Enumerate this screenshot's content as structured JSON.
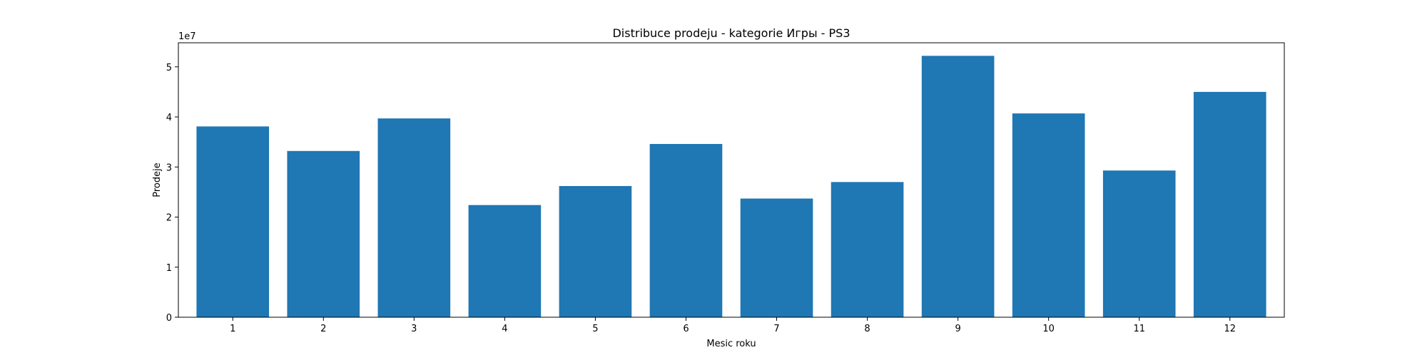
{
  "chart_data": {
    "type": "bar",
    "title": "Distribuce prodeju  - kategorie Игры - PS3",
    "xlabel": "Mesic roku",
    "ylabel": "Prodeje",
    "y_offset_label": "1e7",
    "categories": [
      "1",
      "2",
      "3",
      "4",
      "5",
      "6",
      "7",
      "8",
      "9",
      "10",
      "11",
      "12"
    ],
    "values": [
      38100000,
      33200000,
      39700000,
      22400000,
      26200000,
      34600000,
      23700000,
      27000000,
      52200000,
      40700000,
      29300000,
      45000000
    ],
    "y_ticks": [
      0,
      10000000,
      20000000,
      30000000,
      40000000,
      50000000
    ],
    "y_tick_labels": [
      "0",
      "1",
      "2",
      "3",
      "4",
      "5"
    ],
    "ylim": [
      0,
      54810000
    ],
    "grid": false,
    "bar_color": "#1f77b4"
  }
}
